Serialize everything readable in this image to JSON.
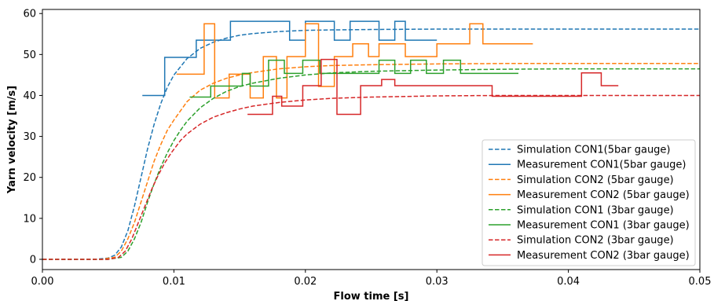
{
  "chart_data": {
    "type": "line",
    "title": "",
    "xlabel": "Flow time [s]",
    "ylabel": "Yarn velocity [m/s]",
    "xlim": [
      0,
      0.05
    ],
    "ylim": [
      -2.5,
      61
    ],
    "xticks": [
      0.0,
      0.01,
      0.02,
      0.03,
      0.04,
      0.05
    ],
    "xtick_labels": [
      "0.00",
      "0.01",
      "0.02",
      "0.03",
      "0.04",
      "0.05"
    ],
    "yticks": [
      0,
      10,
      20,
      30,
      40,
      50,
      60
    ],
    "ytick_labels": [
      "0",
      "10",
      "20",
      "30",
      "40",
      "50",
      "60"
    ],
    "grid": false,
    "legend_position": "lower-right",
    "series": [
      {
        "name": "Simulation CON1(5bar gauge)",
        "style": "dashed",
        "color": "#1f77b4",
        "x": [
          0,
          0.004,
          0.005,
          0.0055,
          0.006,
          0.0065,
          0.007,
          0.0075,
          0.008,
          0.0085,
          0.009,
          0.0095,
          0.01,
          0.011,
          0.012,
          0.013,
          0.014,
          0.015,
          0.016,
          0.018,
          0.02,
          0.022,
          0.025,
          0.03,
          0.035,
          0.04,
          0.045,
          0.05
        ],
        "y": [
          0,
          0,
          0.3,
          1,
          3,
          7,
          13,
          20,
          27,
          33,
          38,
          42,
          45,
          49,
          51.5,
          53,
          54,
          54.7,
          55.1,
          55.6,
          55.9,
          56,
          56.1,
          56.2,
          56.2,
          56.2,
          56.2,
          56.2
        ]
      },
      {
        "name": "Measurement CON1(5bar gauge)",
        "style": "solid",
        "color": "#1f77b4",
        "x": [
          0.0076,
          0.0093,
          0.0093,
          0.0117,
          0.0117,
          0.0143,
          0.0143,
          0.0188,
          0.0188,
          0.02,
          0.02,
          0.0222,
          0.0222,
          0.0234,
          0.0234,
          0.0256,
          0.0256,
          0.0268,
          0.0268,
          0.0276,
          0.0276,
          0.03
        ],
        "y": [
          40,
          40,
          49.3,
          49.3,
          53.5,
          53.5,
          58.1,
          58.1,
          53.5,
          53.5,
          58.1,
          58.1,
          53.5,
          53.5,
          58.1,
          58.1,
          53.5,
          53.5,
          58.1,
          58.1,
          53.5,
          53.5
        ]
      },
      {
        "name": "Simulation CON2 (5bar gauge)",
        "style": "dashed",
        "color": "#ff7f0e",
        "x": [
          0,
          0.0045,
          0.0055,
          0.006,
          0.0065,
          0.007,
          0.0075,
          0.008,
          0.0085,
          0.009,
          0.0095,
          0.01,
          0.011,
          0.012,
          0.013,
          0.014,
          0.015,
          0.016,
          0.018,
          0.02,
          0.022,
          0.025,
          0.03,
          0.035,
          0.04,
          0.045,
          0.05
        ],
        "y": [
          0,
          0,
          0.5,
          2,
          5,
          9,
          14,
          19,
          24,
          28,
          31.5,
          34,
          38.5,
          41.3,
          43,
          44.2,
          45,
          45.6,
          46.5,
          47,
          47.3,
          47.5,
          47.7,
          47.8,
          47.8,
          47.8,
          47.8
        ]
      },
      {
        "name": "Measurement CON2 (5bar gauge)",
        "style": "solid",
        "color": "#ff7f0e",
        "x": [
          0.0102,
          0.0123,
          0.0123,
          0.0131,
          0.0131,
          0.0142,
          0.0142,
          0.0158,
          0.0158,
          0.0168,
          0.0168,
          0.0178,
          0.0178,
          0.0186,
          0.0186,
          0.02,
          0.02,
          0.021,
          0.021,
          0.0211,
          0.0211,
          0.0222,
          0.0222,
          0.0236,
          0.0236,
          0.0248,
          0.0248,
          0.0256,
          0.0256,
          0.0276,
          0.0276,
          0.03,
          0.03,
          0.0325,
          0.0325,
          0.0335,
          0.0335,
          0.0373
        ],
        "y": [
          45.2,
          45.2,
          57.5,
          57.5,
          39.4,
          39.4,
          45.2,
          45.2,
          39.4,
          39.4,
          49.5,
          49.5,
          39.4,
          39.4,
          49.5,
          49.5,
          57.5,
          57.5,
          42.2,
          42.2,
          42.2,
          42.2,
          49.5,
          49.5,
          52.6,
          52.6,
          49.5,
          49.5,
          52.6,
          52.6,
          49.5,
          49.5,
          52.6,
          52.6,
          57.5,
          57.5,
          52.6,
          52.6
        ]
      },
      {
        "name": "Simulation CON1 (3bar gauge)",
        "style": "dashed",
        "color": "#2ca02c",
        "x": [
          0,
          0.005,
          0.006,
          0.0065,
          0.007,
          0.0075,
          0.008,
          0.0085,
          0.009,
          0.0095,
          0.01,
          0.0105,
          0.011,
          0.012,
          0.013,
          0.014,
          0.015,
          0.016,
          0.018,
          0.02,
          0.022,
          0.025,
          0.03,
          0.035,
          0.04,
          0.045,
          0.05
        ],
        "y": [
          0,
          0,
          0.5,
          2,
          5,
          9,
          14,
          18.5,
          22.5,
          26,
          29,
          31.5,
          33.7,
          37,
          39.3,
          41,
          42.2,
          43,
          44.2,
          45,
          45.5,
          45.9,
          46.2,
          46.4,
          46.5,
          46.5,
          46.5
        ]
      },
      {
        "name": "Measurement CON1 (3bar gauge)",
        "style": "solid",
        "color": "#2ca02c",
        "x": [
          0.0112,
          0.0128,
          0.0128,
          0.0152,
          0.0152,
          0.0158,
          0.0158,
          0.0172,
          0.0172,
          0.0184,
          0.0184,
          0.0198,
          0.0198,
          0.0211,
          0.0211,
          0.0256,
          0.0256,
          0.0268,
          0.0268,
          0.028,
          0.028,
          0.0292,
          0.0292,
          0.0305,
          0.0305,
          0.0318,
          0.0318,
          0.0362
        ],
        "y": [
          39.6,
          39.6,
          42.3,
          42.3,
          45.4,
          45.4,
          42.3,
          42.3,
          48.6,
          48.6,
          45.4,
          45.4,
          48.6,
          48.6,
          45.4,
          45.4,
          48.6,
          48.6,
          45.4,
          45.4,
          48.6,
          48.6,
          45.4,
          45.4,
          48.6,
          48.6,
          45.4,
          45.4
        ]
      },
      {
        "name": "Simulation CON2 (3bar gauge)",
        "style": "dashed",
        "color": "#d62728",
        "x": [
          0,
          0.005,
          0.0058,
          0.0063,
          0.0068,
          0.0073,
          0.0078,
          0.0083,
          0.0088,
          0.0093,
          0.0098,
          0.0105,
          0.011,
          0.012,
          0.013,
          0.014,
          0.015,
          0.016,
          0.018,
          0.02,
          0.022,
          0.025,
          0.03,
          0.035,
          0.04,
          0.045,
          0.05
        ],
        "y": [
          0,
          0,
          0.5,
          2,
          5,
          9,
          13,
          17,
          20.5,
          23.5,
          26,
          29,
          30.6,
          33,
          34.7,
          35.8,
          36.7,
          37.4,
          38.3,
          38.9,
          39.3,
          39.6,
          39.9,
          40,
          40,
          40,
          40
        ]
      },
      {
        "name": "Measurement CON2 (3bar gauge)",
        "style": "solid",
        "color": "#d62728",
        "x": [
          0.0156,
          0.0175,
          0.0175,
          0.0182,
          0.0182,
          0.0198,
          0.0198,
          0.0212,
          0.0212,
          0.0224,
          0.0224,
          0.0242,
          0.0242,
          0.0258,
          0.0258,
          0.0268,
          0.0268,
          0.0278,
          0.0278,
          0.0342,
          0.0342,
          0.041,
          0.041,
          0.0425,
          0.0425,
          0.0438
        ],
        "y": [
          35.4,
          35.4,
          39.8,
          39.8,
          37.4,
          37.4,
          42.4,
          42.4,
          48.8,
          48.8,
          35.4,
          35.4,
          42.4,
          42.4,
          43.9,
          43.9,
          42.4,
          42.4,
          42.4,
          42.4,
          39.8,
          39.8,
          45.5,
          45.5,
          42.4,
          42.4
        ]
      }
    ]
  }
}
